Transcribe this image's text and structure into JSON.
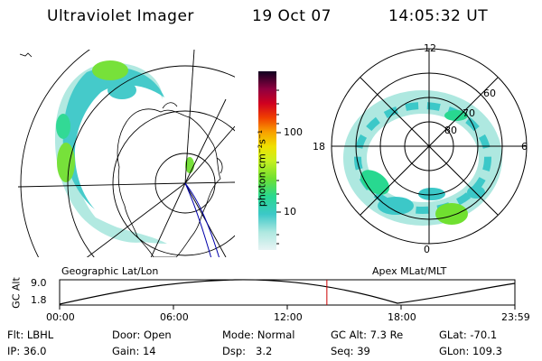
{
  "header": {
    "instrument": "Ultraviolet Imager",
    "date": "19 Oct 07",
    "time": "14:05:32 UT"
  },
  "colorbar": {
    "unit_label": "photon cm⁻²s⁻¹",
    "ticks": [
      "100",
      "10"
    ]
  },
  "left_panel": {
    "caption": "Geographic Lat/Lon"
  },
  "right_panel": {
    "caption": "Apex MLat/MLT",
    "mlt_labels": {
      "top": "12",
      "left": "18",
      "right": "6",
      "bottom": "0"
    },
    "mlat_labels": [
      "60",
      "70",
      "80"
    ]
  },
  "altitude_plot": {
    "ylabel": "GC Alt",
    "y_ticks": [
      "9.0",
      "1.8"
    ],
    "x_ticks": [
      "00:00",
      "06:00",
      "12:00",
      "18:00",
      "23:59"
    ],
    "current_time_fraction": 0.587
  },
  "status": {
    "row1": [
      {
        "label": "Flt:",
        "value": "LBHL"
      },
      {
        "label": "Door:",
        "value": "Open"
      },
      {
        "label": "Mode:",
        "value": "Normal"
      },
      {
        "label": "GC Alt:",
        "value": "7.3 Re"
      },
      {
        "label": "GLat:",
        "value": "-70.1"
      }
    ],
    "row2": [
      {
        "label": "IP:",
        "value": "36.0"
      },
      {
        "label": "Gain:",
        "value": "14"
      },
      {
        "label": "Dsp:",
        "value": "3.2"
      },
      {
        "label": "Seq:",
        "value": "39"
      },
      {
        "label": "GLon:",
        "value": "109.3"
      }
    ]
  },
  "colors": {
    "bar_stops": [
      "#e8f4f4",
      "#aee8e0",
      "#3cc8c8",
      "#28d890",
      "#70e030",
      "#c8f020",
      "#f0e000",
      "#f8a000",
      "#f04000",
      "#d00020",
      "#900040",
      "#500060",
      "#100020"
    ],
    "marker": "#cc0000",
    "track": "#0000aa"
  }
}
